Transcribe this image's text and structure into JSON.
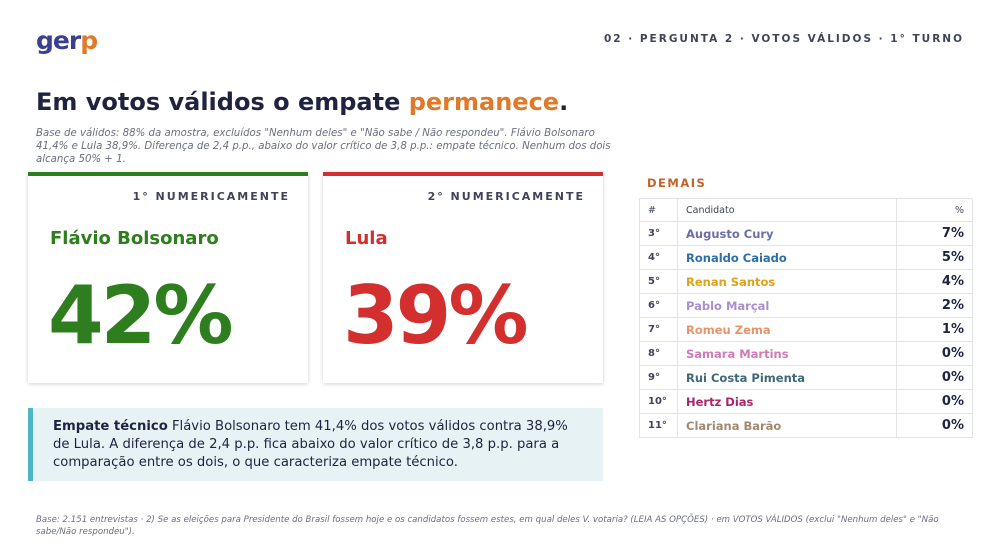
{
  "header": {
    "logo_main": "ger",
    "logo_accent": "p",
    "breadcrumb": "02 · PERGUNTA 2 · VOTOS VÁLIDOS · 1° TURNO"
  },
  "headline": {
    "title_main": "Em votos válidos o empate ",
    "title_accent": "permanece",
    "title_end": ".",
    "subtitle": "Base de válidos: 88% da amostra, excluídos \"Nenhum deles\" e \"Não sabe / Não respondeu\". Flávio Bolsonaro 41,4% e Lula 38,9%. Diferença de 2,4 p.p., abaixo do valor crítico de 3,8 p.p.: empate técnico. Nenhum dos dois alcança 50% + 1."
  },
  "cards": [
    {
      "rank": "1° NUMERICAMENTE",
      "name": "Flávio Bolsonaro",
      "pct": "42%",
      "color": "#2e7d1f"
    },
    {
      "rank": "2° NUMERICAMENTE",
      "name": "Lula",
      "pct": "39%",
      "color": "#d32f2f"
    }
  ],
  "note": {
    "bold": "Empate técnico",
    "text": " Flávio Bolsonaro tem 41,4% dos votos válidos contra 38,9% de Lula. A diferença de 2,4 p.p. fica abaixo do valor crítico de 3,8 p.p. para a comparação entre os dois, o que caracteriza empate técnico."
  },
  "demais": {
    "label": "DEMAIS",
    "headers": {
      "num": "#",
      "cand": "Candidato",
      "pct": "%"
    },
    "rows": [
      {
        "num": "3°",
        "name": "Augusto Cury",
        "pct": "7%",
        "color": "#6b6ea8"
      },
      {
        "num": "4°",
        "name": "Ronaldo Caiado",
        "pct": "5%",
        "color": "#2a6fa8"
      },
      {
        "num": "5°",
        "name": "Renan Santos",
        "pct": "4%",
        "color": "#e0a21a"
      },
      {
        "num": "6°",
        "name": "Pablo Marçal",
        "pct": "2%",
        "color": "#a88ed0"
      },
      {
        "num": "7°",
        "name": "Romeu Zema",
        "pct": "1%",
        "color": "#e8946a"
      },
      {
        "num": "8°",
        "name": "Samara Martins",
        "pct": "0%",
        "color": "#d07ab8"
      },
      {
        "num": "9°",
        "name": "Rui Costa Pimenta",
        "pct": "0%",
        "color": "#3d6a74"
      },
      {
        "num": "10°",
        "name": "Hertz Dias",
        "pct": "0%",
        "color": "#a8256a"
      },
      {
        "num": "11°",
        "name": "Clariana Barão",
        "pct": "0%",
        "color": "#a08a70"
      }
    ]
  },
  "footer": "Base: 2.151 entrevistas · 2) Se as eleições para Presidente do Brasil fossem hoje e os candidatos fossem estes, em qual deles V. votaria? (LEIA AS OPÇÕES) · em VOTOS VÁLIDOS (exclui \"Nenhum deles\" e \"Não sabe/Não respondeu\")."
}
